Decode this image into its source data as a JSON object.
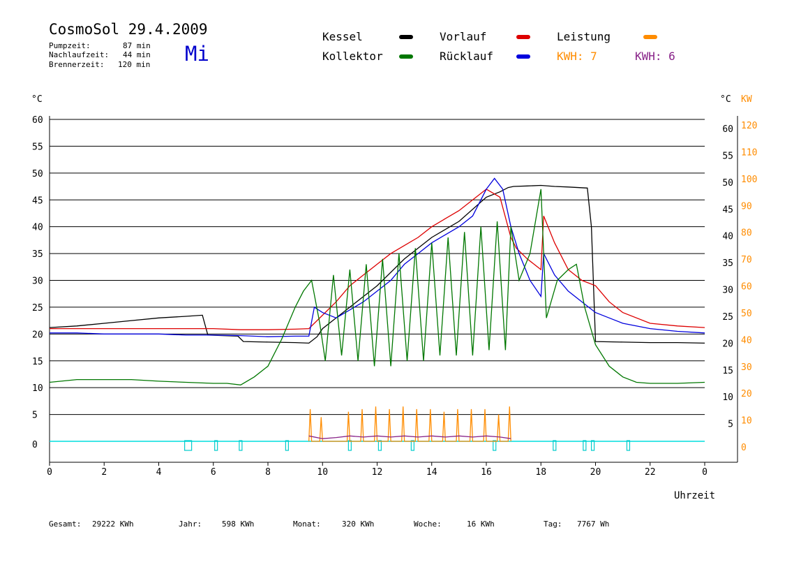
{
  "header": {
    "title": "CosmoSol 29.4.2009",
    "weekday": "Mi",
    "stats": [
      {
        "label": "Pumpzeit:",
        "value": "87 min"
      },
      {
        "label": "Nachlaufzeit:",
        "value": "44 min"
      },
      {
        "label": "Brennerzeit:",
        "value": "120 min"
      }
    ]
  },
  "legend": {
    "kessel": {
      "label": "Kessel",
      "color": "#000000"
    },
    "vorlauf": {
      "label": "Vorlauf",
      "color": "#dd0000"
    },
    "leistung": {
      "label": "Leistung",
      "color": "#ff8c00"
    },
    "kollektor": {
      "label": "Kollektor",
      "color": "#007700"
    },
    "ruecklauf": {
      "label": "Rücklauf",
      "color": "#0000dd"
    },
    "kwh_orange": {
      "label": "KWH: 7",
      "color": "#ff8c00"
    },
    "kwh_purple": {
      "label": "KWH: 6",
      "color": "#882288"
    }
  },
  "footer": [
    {
      "label": "Gesamt:",
      "value": "29222 KWh"
    },
    {
      "label": "Jahr:",
      "value": "598 KWh"
    },
    {
      "label": "Monat:",
      "value": "320 KWh"
    },
    {
      "label": "Woche:",
      "value": "16 KWh"
    },
    {
      "label": "Tag:",
      "value": "7767 Wh"
    }
  ],
  "chart_data": {
    "type": "line",
    "xlabel": "Uhrzeit",
    "y_left_unit": "°C",
    "y_right_unit": "°C",
    "y_power_unit": "KW",
    "xlim": [
      0,
      24
    ],
    "ylim": [
      0,
      60
    ],
    "y_power_lim": [
      0,
      120
    ],
    "x_ticks": [
      "0",
      "2",
      "4",
      "6",
      "8",
      "10",
      "12",
      "14",
      "16",
      "18",
      "20",
      "22",
      "0"
    ],
    "y_ticks_left": [
      "0",
      "5",
      "10",
      "15",
      "20",
      "25",
      "30",
      "35",
      "40",
      "45",
      "50",
      "55",
      "60"
    ],
    "y_ticks_right": [
      "5",
      "10",
      "15",
      "20",
      "25",
      "30",
      "35",
      "40",
      "45",
      "50",
      "55",
      "60"
    ],
    "y_ticks_power": [
      "0",
      "10",
      "20",
      "30",
      "40",
      "50",
      "60",
      "70",
      "80",
      "90",
      "100",
      "110",
      "120"
    ],
    "grid": true,
    "series": [
      {
        "name": "Kessel",
        "color": "#000000",
        "x": [
          0,
          1,
          2,
          3,
          4,
          5,
          5.6,
          5.8,
          6.9,
          7.1,
          8,
          9,
          9.5,
          9.8,
          10,
          10.5,
          11,
          12,
          13,
          14,
          15,
          16,
          16.5,
          16.8,
          17,
          17.5,
          18,
          18.5,
          19,
          19.7,
          19.85,
          20,
          21,
          22,
          23,
          24
        ],
        "y": [
          21.2,
          21.5,
          22,
          22.5,
          23,
          23.3,
          23.5,
          19.8,
          19.6,
          18.6,
          18.5,
          18.4,
          18.3,
          19.5,
          21,
          23,
          25,
          29,
          34,
          38,
          41,
          45.5,
          46.5,
          47.3,
          47.5,
          47.6,
          47.7,
          47.5,
          47.4,
          47.2,
          40,
          18.6,
          18.5,
          18.4,
          18.4,
          18.3
        ]
      },
      {
        "name": "Vorlauf",
        "color": "#dd0000",
        "x": [
          0,
          1,
          2,
          3,
          4,
          5,
          6,
          7,
          8,
          9,
          9.5,
          10,
          10.5,
          11,
          11.5,
          12,
          12.5,
          13,
          13.5,
          14,
          14.5,
          15,
          15.5,
          16,
          16.5,
          16.9,
          17.1,
          17.5,
          18,
          18.1,
          18.5,
          19,
          19.5,
          20,
          20.5,
          21,
          22,
          23,
          24
        ],
        "y": [
          21,
          21,
          21,
          21,
          21,
          21,
          21,
          20.8,
          20.8,
          20.9,
          21,
          23.5,
          26,
          29,
          31,
          33,
          35,
          36.5,
          38,
          40,
          41.5,
          43,
          45,
          47,
          45.5,
          38,
          36,
          34,
          32,
          42,
          37,
          32,
          30,
          29,
          26,
          24,
          22,
          21.5,
          21.2
        ]
      },
      {
        "name": "Rücklauf",
        "color": "#0000dd",
        "x": [
          0,
          1,
          2,
          3,
          4,
          5,
          6,
          7,
          8,
          9,
          9.5,
          9.7,
          10,
          10.5,
          11,
          11.5,
          12,
          12.5,
          13,
          13.5,
          14,
          14.5,
          15,
          15.5,
          16,
          16.3,
          16.6,
          16.9,
          17.2,
          17.6,
          18,
          18.1,
          18.5,
          19,
          19.5,
          20,
          20.5,
          21,
          22,
          23,
          24
        ],
        "y": [
          20.2,
          20.2,
          20,
          20,
          20,
          19.8,
          19.8,
          19.7,
          19.5,
          19.6,
          19.6,
          25,
          24,
          23,
          24.5,
          26,
          28,
          30,
          33,
          35,
          37,
          38.5,
          40,
          42,
          47,
          49,
          47,
          40,
          35,
          30,
          27,
          35,
          31,
          28,
          26,
          24,
          23,
          22,
          21,
          20.5,
          20.2
        ]
      },
      {
        "name": "Kollektor",
        "color": "#007700",
        "x": [
          0,
          1,
          2,
          3,
          4,
          5,
          6,
          6.5,
          7,
          7.5,
          8,
          8.5,
          9,
          9.3,
          9.6,
          9.9,
          10.1,
          10.4,
          10.7,
          11,
          11.3,
          11.6,
          11.9,
          12.2,
          12.5,
          12.8,
          13.1,
          13.4,
          13.7,
          14,
          14.3,
          14.6,
          14.9,
          15.2,
          15.5,
          15.8,
          16.1,
          16.4,
          16.7,
          16.9,
          17.2,
          17.6,
          18,
          18.2,
          18.6,
          19,
          19.3,
          19.6,
          20,
          20.5,
          21,
          21.5,
          22,
          23,
          24
        ],
        "y": [
          11,
          11.5,
          11.5,
          11.5,
          11.2,
          11,
          10.8,
          10.8,
          10.5,
          12,
          14,
          19,
          25,
          28,
          30,
          22,
          15,
          31,
          16,
          32,
          15,
          33,
          14,
          34,
          14,
          35,
          15,
          36,
          15,
          37,
          16,
          38,
          16,
          39,
          16,
          40,
          17,
          41,
          17,
          40,
          30,
          35,
          47,
          23,
          30,
          32,
          33,
          25,
          18,
          14,
          12,
          11,
          10.8,
          10.8,
          11
        ]
      },
      {
        "name": "Leistung",
        "color": "#ff8c00",
        "x": [
          9.5,
          9.55,
          9.6,
          9.9,
          9.95,
          10,
          10.9,
          10.95,
          11,
          11.4,
          11.45,
          11.5,
          11.9,
          11.95,
          12,
          12.4,
          12.45,
          12.5,
          12.9,
          12.95,
          13,
          13.4,
          13.45,
          13.5,
          13.9,
          13.95,
          14,
          14.4,
          14.45,
          14.5,
          14.9,
          14.95,
          15,
          15.4,
          15.45,
          15.5,
          15.9,
          15.95,
          16,
          16.4,
          16.45,
          16.5,
          16.8,
          16.85,
          16.9
        ],
        "y": [
          0,
          12,
          0,
          0,
          9,
          0,
          0,
          11,
          0,
          0,
          12,
          0,
          0,
          13,
          0,
          0,
          12,
          0,
          0,
          13,
          0,
          0,
          12,
          0,
          0,
          12,
          0,
          0,
          11,
          0,
          0,
          12,
          0,
          0,
          12,
          0,
          0,
          12,
          0,
          0,
          10,
          0,
          0,
          13,
          0
        ]
      },
      {
        "name": "KWH",
        "color": "#882288",
        "x": [
          9.5,
          10,
          10.5,
          11,
          11.5,
          12,
          12.5,
          13,
          13.5,
          14,
          14.5,
          15,
          15.5,
          16,
          16.5,
          16.9
        ],
        "y": [
          1,
          0.5,
          0.7,
          1,
          0.8,
          1,
          0.8,
          1,
          0.8,
          1,
          0.8,
          1,
          0.8,
          1,
          0.8,
          0.5
        ]
      }
    ]
  }
}
